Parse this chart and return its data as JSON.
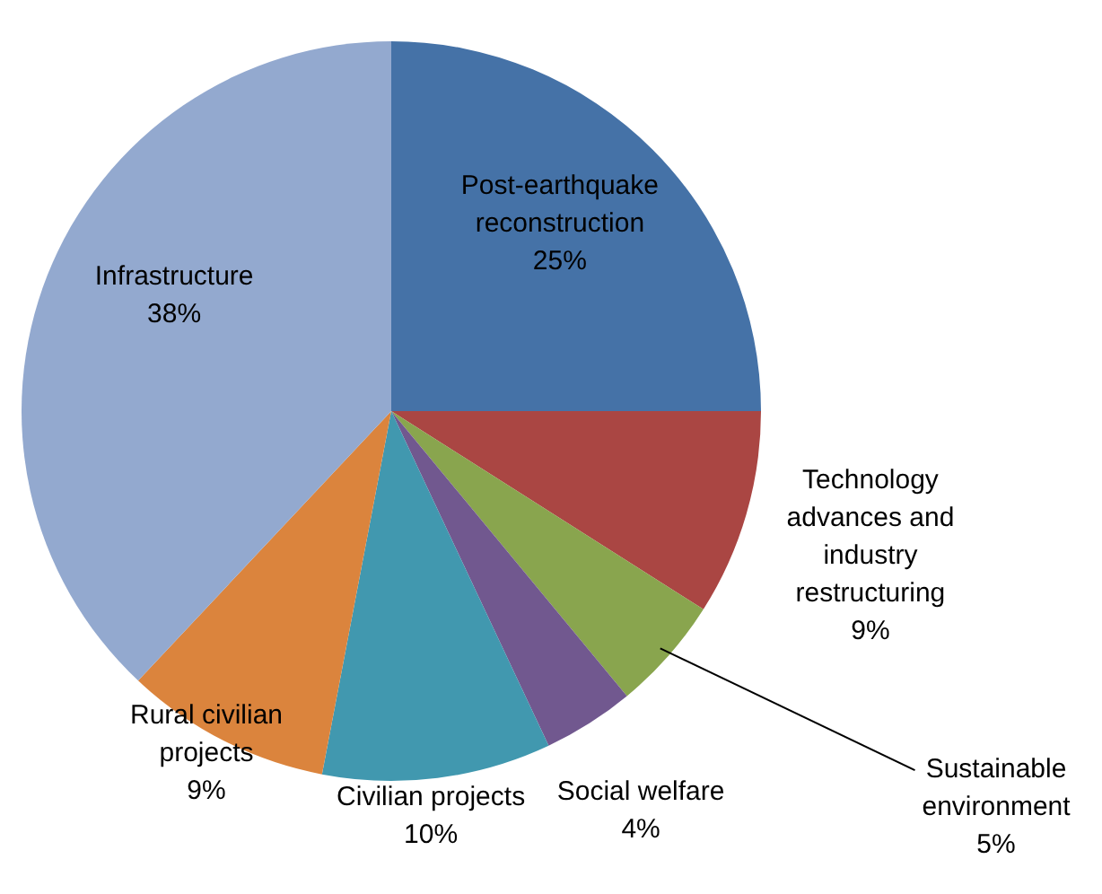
{
  "chart_data": {
    "type": "pie",
    "categories": [
      "Post-earthquake reconstruction",
      "Technology advances and industry restructuring",
      "Sustainable environment",
      "Social welfare",
      "Civilian projects",
      "Rural civilian projects",
      "Infrastructure"
    ],
    "values": [
      25,
      9,
      5,
      4,
      10,
      9,
      38
    ],
    "value_labels": [
      "25%",
      "9%",
      "5%",
      "4%",
      "10%",
      "9%",
      "38%"
    ],
    "colors": [
      "#4572a7",
      "#aa4643",
      "#89a54e",
      "#71588f",
      "#4198af",
      "#db843d",
      "#93a9cf"
    ],
    "legend": false
  }
}
